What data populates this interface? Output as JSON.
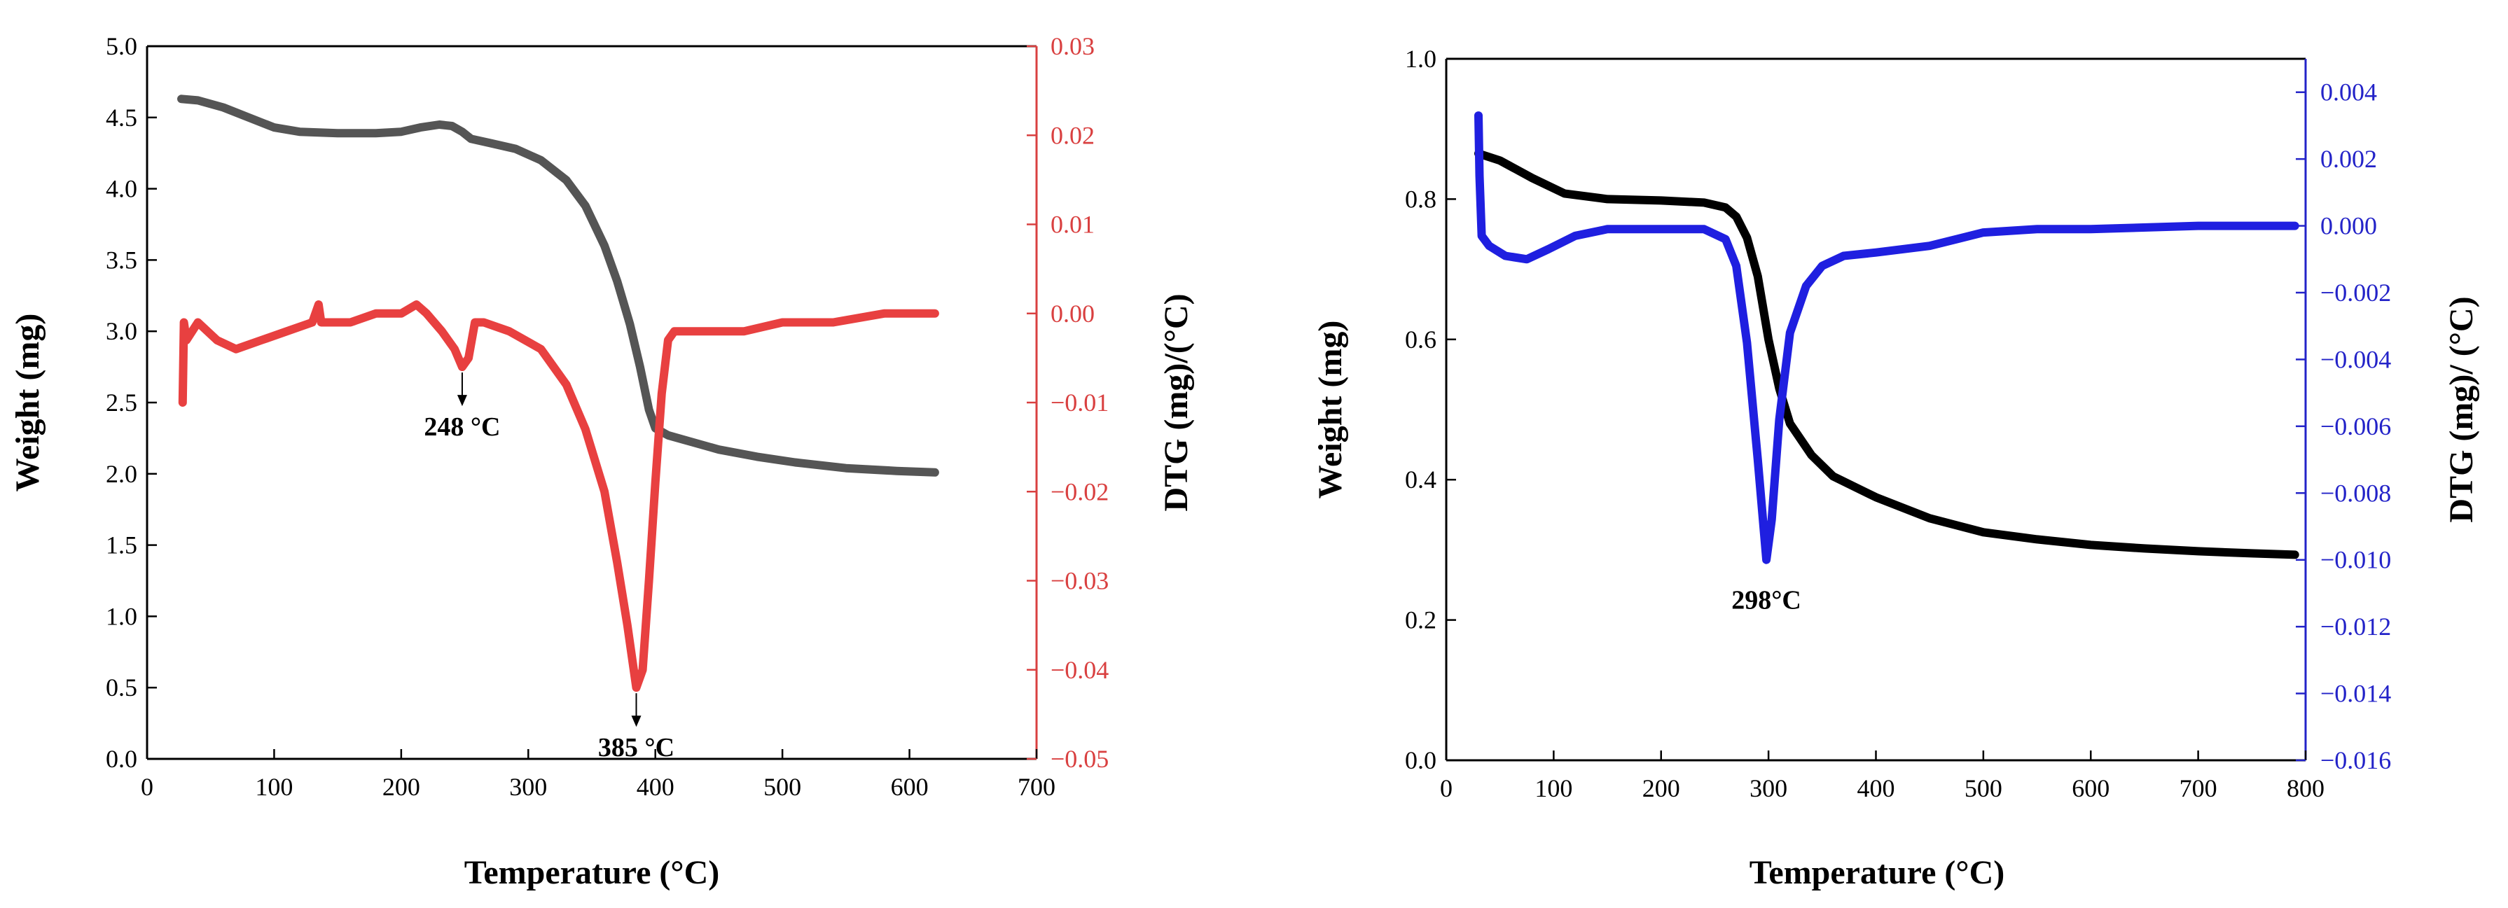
{
  "chart_data": [
    {
      "type": "line",
      "panel": "left",
      "xlabel": "Temperature (°C)",
      "ylabel": "Weight (mg)",
      "y2label": "DTG (mg)/(°C)",
      "xlim": [
        0,
        700
      ],
      "ylim": [
        0,
        5.0
      ],
      "y2lim": [
        -0.05,
        0.03
      ],
      "xticks": [
        "0",
        "100",
        "200",
        "300",
        "400",
        "500",
        "600",
        "700"
      ],
      "yticks": [
        "0.0",
        "0.5",
        "1.0",
        "1.5",
        "2.0",
        "2.5",
        "3.0",
        "3.5",
        "4.0",
        "4.5",
        "5.0"
      ],
      "y2ticks": [
        "-0.05",
        "-0.04",
        "-0.03",
        "-0.02",
        "-0.01",
        "0.00",
        "0.01",
        "0.02",
        "0.03"
      ],
      "y2_color": "#d94040",
      "series": [
        {
          "name": "Weight",
          "axis": "left",
          "color": "#555555",
          "points": [
            [
              27,
              4.63
            ],
            [
              40,
              4.62
            ],
            [
              60,
              4.57
            ],
            [
              80,
              4.5
            ],
            [
              100,
              4.43
            ],
            [
              120,
              4.4
            ],
            [
              150,
              4.39
            ],
            [
              180,
              4.39
            ],
            [
              200,
              4.4
            ],
            [
              215,
              4.43
            ],
            [
              230,
              4.45
            ],
            [
              240,
              4.44
            ],
            [
              248,
              4.4
            ],
            [
              255,
              4.35
            ],
            [
              270,
              4.32
            ],
            [
              290,
              4.28
            ],
            [
              310,
              4.2
            ],
            [
              330,
              4.06
            ],
            [
              345,
              3.88
            ],
            [
              360,
              3.6
            ],
            [
              370,
              3.35
            ],
            [
              380,
              3.05
            ],
            [
              388,
              2.75
            ],
            [
              395,
              2.45
            ],
            [
              400,
              2.32
            ],
            [
              410,
              2.27
            ],
            [
              430,
              2.22
            ],
            [
              450,
              2.17
            ],
            [
              480,
              2.12
            ],
            [
              510,
              2.08
            ],
            [
              550,
              2.04
            ],
            [
              590,
              2.02
            ],
            [
              620,
              2.01
            ]
          ]
        },
        {
          "name": "DTG",
          "axis": "right",
          "color": "#e84040",
          "points": [
            [
              28,
              -0.01
            ],
            [
              29,
              -0.001
            ],
            [
              31,
              -0.003
            ],
            [
              40,
              -0.001
            ],
            [
              55,
              -0.003
            ],
            [
              70,
              -0.004
            ],
            [
              90,
              -0.003
            ],
            [
              110,
              -0.002
            ],
            [
              130,
              -0.001
            ],
            [
              135,
              0.001
            ],
            [
              137,
              -0.001
            ],
            [
              160,
              -0.001
            ],
            [
              180,
              0.0
            ],
            [
              200,
              0.0
            ],
            [
              212,
              0.001
            ],
            [
              220,
              0.0
            ],
            [
              232,
              -0.002
            ],
            [
              242,
              -0.004
            ],
            [
              248,
              -0.006
            ],
            [
              253,
              -0.005
            ],
            [
              258,
              -0.001
            ],
            [
              265,
              -0.001
            ],
            [
              285,
              -0.002
            ],
            [
              310,
              -0.004
            ],
            [
              330,
              -0.008
            ],
            [
              345,
              -0.013
            ],
            [
              360,
              -0.02
            ],
            [
              370,
              -0.028
            ],
            [
              378,
              -0.035
            ],
            [
              385,
              -0.042
            ],
            [
              390,
              -0.04
            ],
            [
              395,
              -0.03
            ],
            [
              400,
              -0.019
            ],
            [
              405,
              -0.009
            ],
            [
              410,
              -0.003
            ],
            [
              415,
              -0.002
            ],
            [
              440,
              -0.002
            ],
            [
              470,
              -0.002
            ],
            [
              500,
              -0.001
            ],
            [
              540,
              -0.001
            ],
            [
              580,
              0.0
            ],
            [
              620,
              0.0
            ]
          ]
        }
      ],
      "annotations": [
        {
          "text": "248 °C",
          "x": 248,
          "y2": -0.006
        },
        {
          "text": "385 °C",
          "x": 385,
          "y2": -0.042
        }
      ]
    },
    {
      "type": "line",
      "panel": "right",
      "xlabel": "Temperature (°C)",
      "ylabel": "Weight (mg)",
      "y2label": "DTG (mg)/ (°C)",
      "xlim": [
        0,
        800
      ],
      "ylim": [
        0,
        1.0
      ],
      "y2lim": [
        -0.016,
        0.005
      ],
      "xticks": [
        "0",
        "100",
        "200",
        "300",
        "400",
        "500",
        "600",
        "700",
        "800"
      ],
      "yticks": [
        "0.0",
        "0.2",
        "0.4",
        "0.6",
        "0.8",
        "1.0"
      ],
      "y2ticks": [
        "-0.016",
        "-0.014",
        "-0.012",
        "-0.010",
        "-0.008",
        "-0.006",
        "-0.004",
        "-0.002",
        "0.000",
        "0.002",
        "0.004"
      ],
      "y2_color": "#2323c8",
      "series": [
        {
          "name": "Weight",
          "axis": "left",
          "color": "#000000",
          "points": [
            [
              30,
              0.865
            ],
            [
              50,
              0.855
            ],
            [
              80,
              0.83
            ],
            [
              110,
              0.808
            ],
            [
              150,
              0.8
            ],
            [
              200,
              0.798
            ],
            [
              240,
              0.795
            ],
            [
              260,
              0.788
            ],
            [
              270,
              0.775
            ],
            [
              280,
              0.745
            ],
            [
              290,
              0.69
            ],
            [
              300,
              0.6
            ],
            [
              310,
              0.53
            ],
            [
              320,
              0.48
            ],
            [
              340,
              0.435
            ],
            [
              360,
              0.405
            ],
            [
              400,
              0.375
            ],
            [
              450,
              0.345
            ],
            [
              500,
              0.325
            ],
            [
              550,
              0.315
            ],
            [
              600,
              0.307
            ],
            [
              650,
              0.302
            ],
            [
              700,
              0.298
            ],
            [
              750,
              0.295
            ],
            [
              790,
              0.293
            ]
          ]
        },
        {
          "name": "DTG",
          "axis": "right",
          "color": "#1f1fe0",
          "points": [
            [
              30,
              0.0033
            ],
            [
              31,
              0.0015
            ],
            [
              33,
              -0.0003
            ],
            [
              40,
              -0.0006
            ],
            [
              55,
              -0.0009
            ],
            [
              75,
              -0.001
            ],
            [
              95,
              -0.0007
            ],
            [
              120,
              -0.0003
            ],
            [
              150,
              -0.0001
            ],
            [
              200,
              -0.0001
            ],
            [
              240,
              -0.0001
            ],
            [
              260,
              -0.0004
            ],
            [
              270,
              -0.0012
            ],
            [
              280,
              -0.0035
            ],
            [
              290,
              -0.007
            ],
            [
              298,
              -0.01
            ],
            [
              303,
              -0.0088
            ],
            [
              310,
              -0.0058
            ],
            [
              320,
              -0.0032
            ],
            [
              335,
              -0.0018
            ],
            [
              350,
              -0.0012
            ],
            [
              370,
              -0.0009
            ],
            [
              400,
              -0.0008
            ],
            [
              450,
              -0.0006
            ],
            [
              500,
              -0.0002
            ],
            [
              550,
              -0.0001
            ],
            [
              600,
              -0.0001
            ],
            [
              700,
              0.0
            ],
            [
              790,
              0.0
            ]
          ]
        }
      ],
      "annotations": [
        {
          "text": "298°C",
          "x": 298,
          "y2": -0.01
        }
      ]
    }
  ]
}
